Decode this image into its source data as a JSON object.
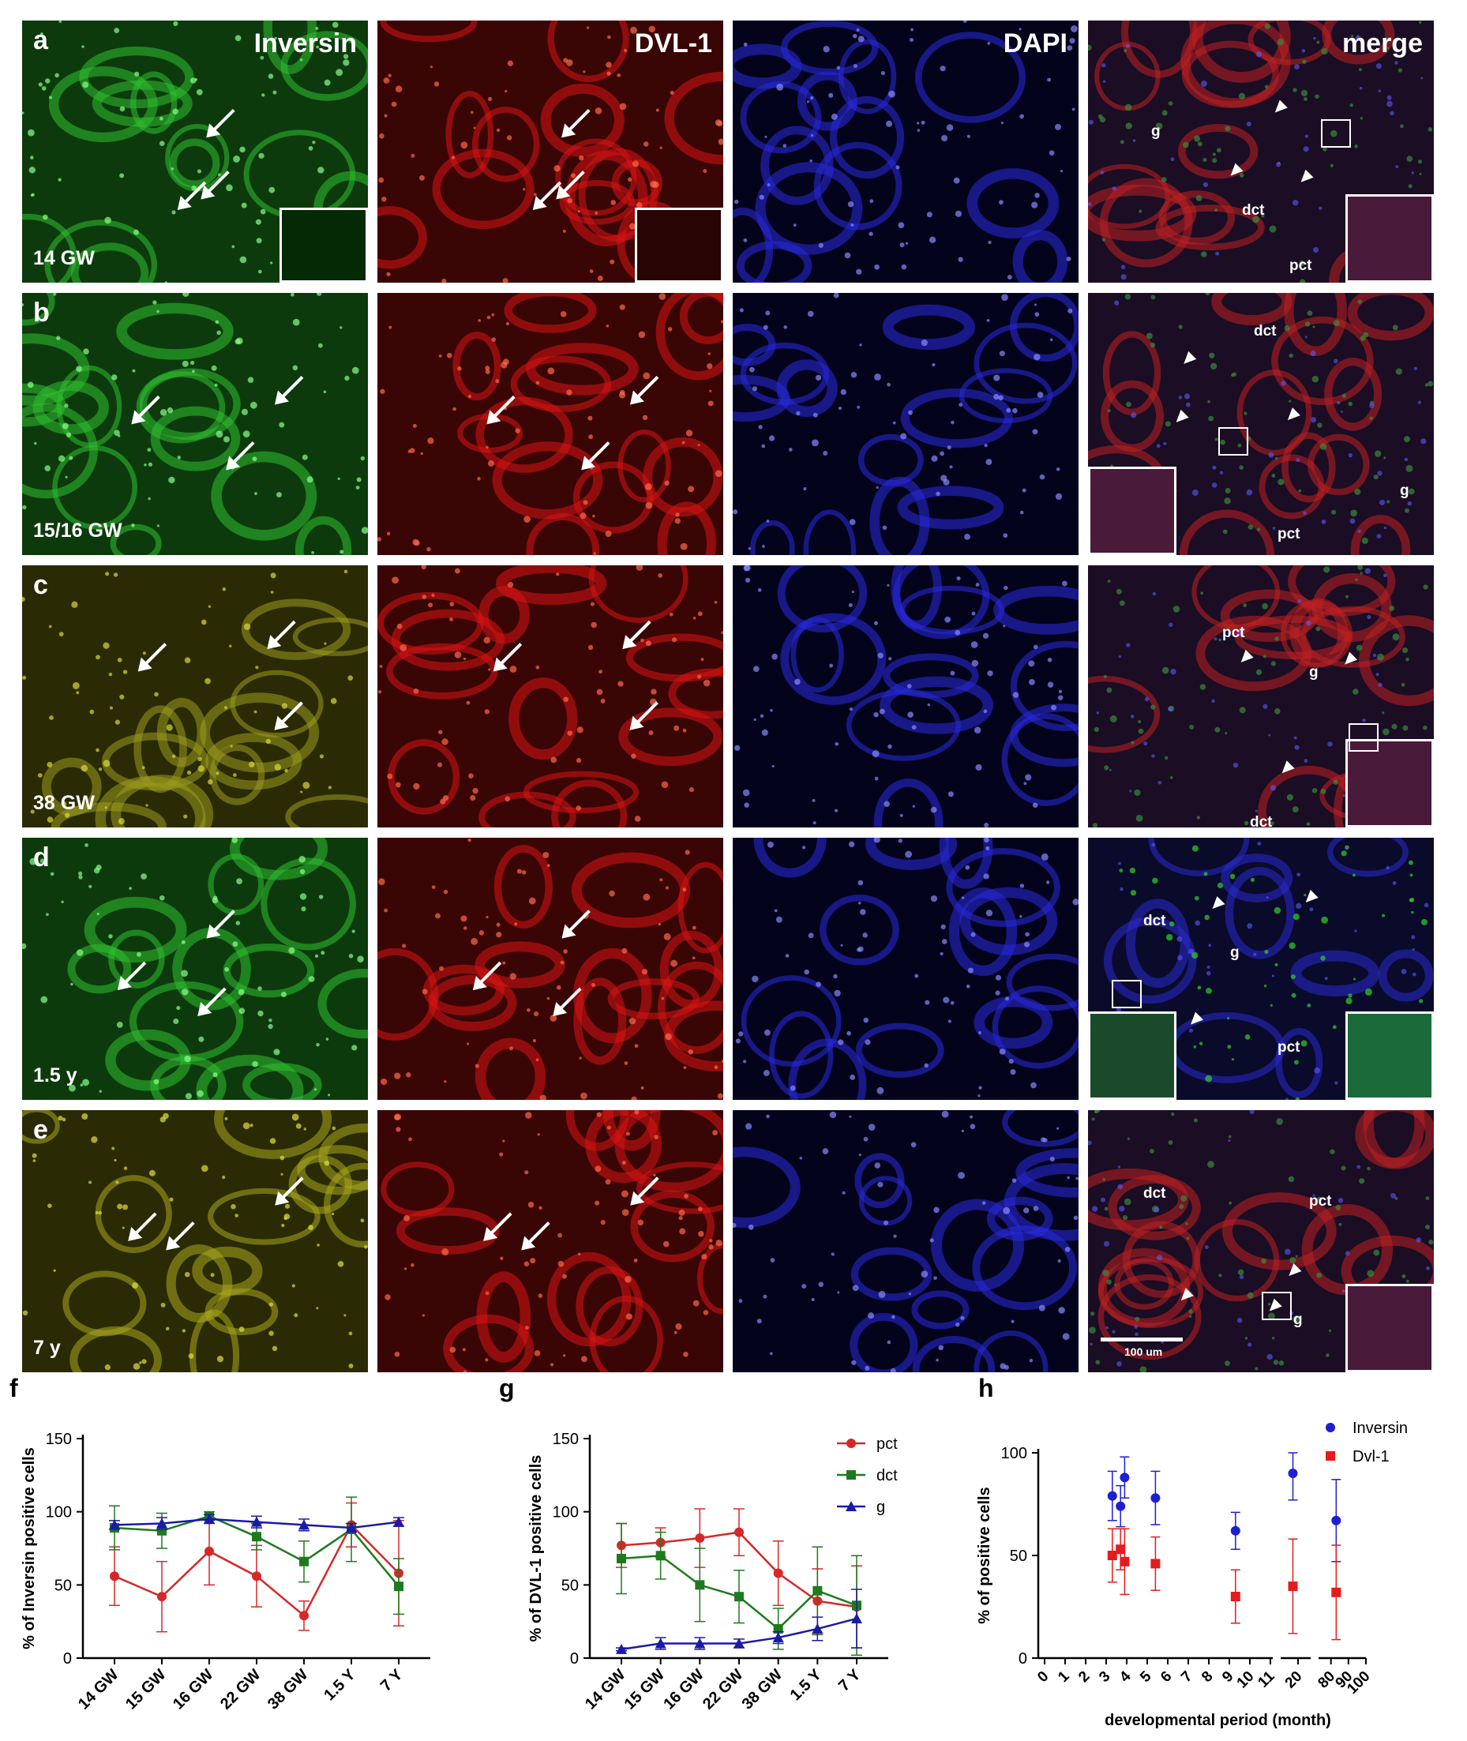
{
  "channels": [
    "Inversin",
    "DVL-1",
    "DAPI",
    "merge"
  ],
  "rows": [
    {
      "letter": "a",
      "age": "14 GW",
      "regions": [
        "g",
        "dct",
        "pct"
      ]
    },
    {
      "letter": "b",
      "age": "15/16 GW",
      "regions": [
        "dct",
        "g",
        "pct"
      ]
    },
    {
      "letter": "c",
      "age": "38 GW",
      "regions": [
        "pct",
        "g",
        "dct"
      ]
    },
    {
      "letter": "d",
      "age": "1.5 y",
      "regions": [
        "dct",
        "g",
        "pct"
      ]
    },
    {
      "letter": "e",
      "age": "7 y",
      "regions": [
        "dct",
        "pct",
        "g"
      ]
    }
  ],
  "scale_bar": "100 um",
  "colors": {
    "inversin": "#1fb31f",
    "dvl1": "#e01010",
    "dapi": "#2424d8",
    "pct": "#d62828",
    "dct": "#1e7a1e",
    "g": "#1a1aa8",
    "inv_h": "#1e1ed6",
    "dvl_h": "#e61b1b"
  },
  "chart_data": [
    {
      "letter": "f",
      "type": "line",
      "categories": [
        "14 GW",
        "15 GW",
        "16 GW",
        "22 GW",
        "38 GW",
        "1.5 Y",
        "7 Y"
      ],
      "ylabel": "% of Inversin positive cells",
      "ylim": [
        0,
        150
      ],
      "yticks": [
        0,
        50,
        100,
        150
      ],
      "series": [
        {
          "key": "pct",
          "marker": "circle",
          "values": [
            56,
            42,
            73,
            56,
            29,
            91,
            58
          ],
          "errors": [
            20,
            24,
            23,
            21,
            10,
            15,
            36
          ]
        },
        {
          "key": "dct",
          "marker": "square",
          "values": [
            89,
            87,
            97,
            83,
            66,
            88,
            49
          ],
          "errors": [
            15,
            12,
            3,
            9,
            14,
            22,
            19
          ]
        },
        {
          "key": "g",
          "marker": "triangle",
          "values": [
            91,
            92,
            95,
            93,
            91,
            89,
            93
          ],
          "errors": [
            3,
            4,
            3,
            4,
            4,
            3,
            3
          ]
        }
      ]
    },
    {
      "letter": "g",
      "type": "line",
      "categories": [
        "14 GW",
        "15 GW",
        "16 GW",
        "22 GW",
        "38 GW",
        "1.5 Y",
        "7 Y"
      ],
      "ylabel": "% of DVL-1 positive cells",
      "ylim": [
        0,
        150
      ],
      "yticks": [
        0,
        50,
        100,
        150
      ],
      "legend": [
        {
          "key": "pct",
          "name": "pct"
        },
        {
          "key": "dct",
          "name": "dct"
        },
        {
          "key": "g",
          "name": "g"
        }
      ],
      "series": [
        {
          "key": "pct",
          "marker": "circle",
          "values": [
            77,
            79,
            82,
            86,
            58,
            39,
            35
          ],
          "errors": [
            15,
            10,
            20,
            16,
            22,
            22,
            28
          ]
        },
        {
          "key": "dct",
          "marker": "square",
          "values": [
            68,
            70,
            50,
            42,
            20,
            46,
            36
          ],
          "errors": [
            24,
            16,
            25,
            18,
            14,
            30,
            34
          ]
        },
        {
          "key": "g",
          "marker": "triangle",
          "values": [
            6,
            10,
            10,
            10,
            14,
            20,
            27
          ],
          "errors": [
            1,
            4,
            4,
            3,
            4,
            8,
            20
          ]
        }
      ]
    },
    {
      "letter": "h",
      "type": "scatter",
      "xlabel": "developmental period (month)",
      "ylabel": "% of positive cells",
      "ylim": [
        0,
        100
      ],
      "yticks": [
        0,
        50,
        100
      ],
      "xticks": [
        "0",
        "1",
        "2",
        "3",
        "4",
        "5",
        "6",
        "7",
        "8",
        "9",
        "10",
        "11",
        "20",
        "80",
        "90",
        "100"
      ],
      "legend": [
        {
          "key": "inv_h",
          "name": "Inversin"
        },
        {
          "key": "dvl_h",
          "name": "Dvl-1"
        }
      ],
      "series": [
        {
          "key": "inv_h",
          "name": "Inversin",
          "x": [
            3.3,
            3.7,
            3.9,
            5.4,
            9.3,
            19.5,
            83
          ],
          "y": [
            79,
            74,
            88,
            78,
            62,
            90,
            67
          ],
          "errors": [
            12,
            10,
            10,
            13,
            9,
            13,
            20
          ]
        },
        {
          "key": "dvl_h",
          "name": "Dvl-1",
          "x": [
            3.3,
            3.7,
            3.9,
            5.4,
            9.3,
            19.5,
            83
          ],
          "y": [
            50,
            53,
            47,
            46,
            30,
            35,
            32
          ],
          "errors": [
            13,
            10,
            16,
            13,
            13,
            23,
            23
          ]
        }
      ]
    }
  ]
}
